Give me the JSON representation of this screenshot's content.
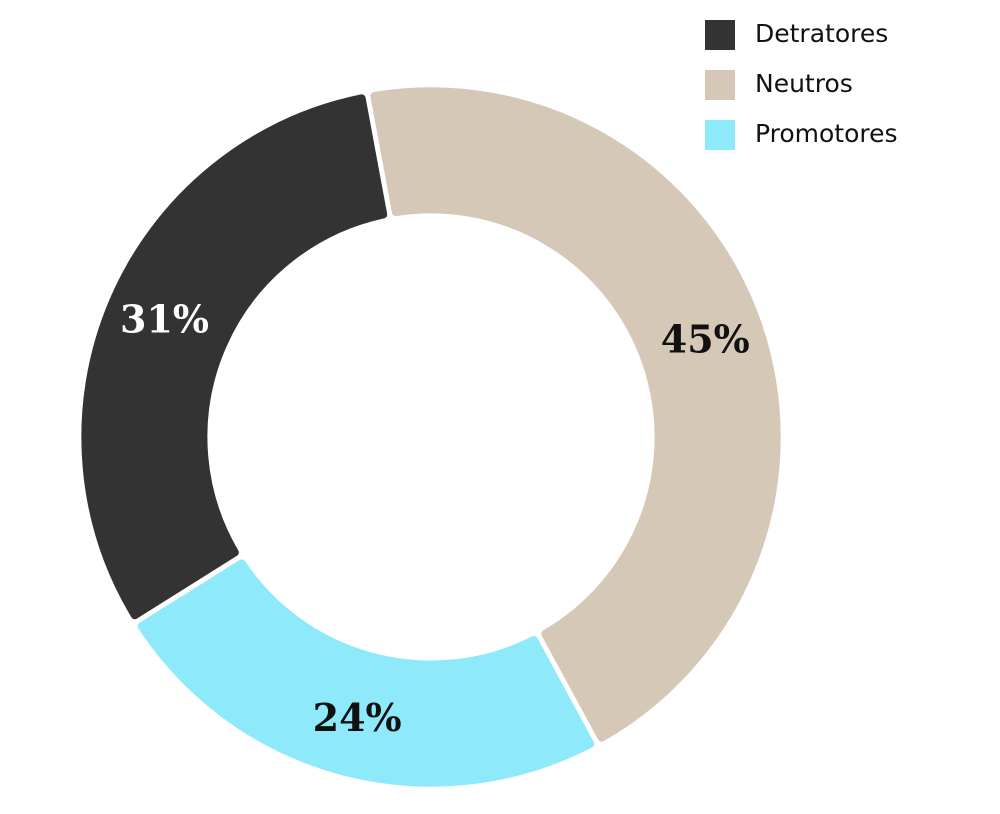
{
  "chart_data": {
    "type": "donut",
    "categories": [
      "Detratores",
      "Neutros",
      "Promotores"
    ],
    "values": [
      31,
      45,
      24
    ],
    "value_labels": [
      "31%",
      "45%",
      "24%"
    ],
    "colors": [
      "#333333",
      "#d5c8b7",
      "#8ee9fb"
    ],
    "label_colors": [
      "#ffffff",
      "#111111",
      "#111111"
    ],
    "legend": "top-right"
  }
}
